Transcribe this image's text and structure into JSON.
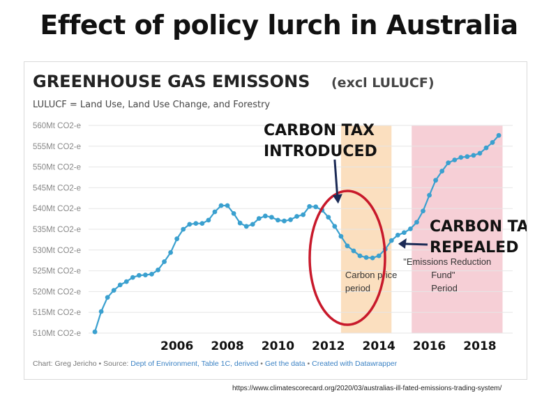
{
  "slide_title": "Effect of policy lurch in Australia",
  "source_url": "https://www.climatescorecard.org/2020/03/australias-ill-fated-emissions-trading-system/",
  "colors": {
    "line": "#3aa0cf",
    "carbon_price_shade": "#fbdfbf",
    "erf_shade": "#f6cfd6",
    "circle": "#c8192b",
    "annotation_arrow": "#1b2a55"
  },
  "chart_data": {
    "type": "line",
    "title": "GREENHOUSE GAS EMISSONS",
    "title_suffix": "(excl LULUCF)",
    "subtitle": "LULUCF = Land Use, Land Use Change, and Forestry",
    "xlabel": "",
    "ylabel": "",
    "ylim": [
      510,
      560
    ],
    "xlim": [
      2002.5,
      2019.3
    ],
    "grid": true,
    "y_tick_values": [
      510,
      515,
      520,
      525,
      530,
      535,
      540,
      545,
      550,
      555,
      560
    ],
    "y_tick_labels": [
      "510Mt CO2-e",
      "515Mt CO2-e",
      "520Mt CO2-e",
      "525Mt CO2-e",
      "530Mt CO2-e",
      "535Mt CO2-e",
      "540Mt CO2-e",
      "545Mt CO2-e",
      "550Mt CO2-e",
      "555Mt CO2-e",
      "560Mt CO2-e"
    ],
    "x_tick_values": [
      2006,
      2008,
      2010,
      2012,
      2014,
      2016,
      2018
    ],
    "x_tick_labels": [
      "2006",
      "2008",
      "2010",
      "2012",
      "2014",
      "2016",
      "2018"
    ],
    "series": [
      {
        "x": [
          2002.75,
          2003.0,
          2003.25,
          2003.5,
          2003.75,
          2004.0,
          2004.25,
          2004.5,
          2004.75,
          2005.0,
          2005.25,
          2005.5,
          2005.75,
          2006.0,
          2006.25,
          2006.5,
          2006.75,
          2007.0,
          2007.25,
          2007.5,
          2007.75,
          2008.0,
          2008.25,
          2008.5,
          2008.75,
          2009.0,
          2009.25,
          2009.5,
          2009.75,
          2010.0,
          2010.25,
          2010.5,
          2010.75,
          2011.0,
          2011.25,
          2011.5,
          2011.75,
          2012.0,
          2012.25,
          2012.5,
          2012.75,
          2013.0,
          2013.25,
          2013.5,
          2013.75,
          2014.0,
          2014.25,
          2014.5,
          2014.75,
          2015.0,
          2015.25,
          2015.5,
          2015.75,
          2016.0,
          2016.25,
          2016.5,
          2016.75,
          2017.0,
          2017.25,
          2017.5,
          2017.75,
          2018.0,
          2018.25,
          2018.5,
          2018.75
        ],
        "y": [
          510.3,
          515.2,
          518.6,
          520.3,
          521.6,
          522.4,
          523.4,
          523.9,
          524.0,
          524.2,
          525.2,
          527.2,
          529.4,
          532.7,
          535.0,
          536.2,
          536.4,
          536.4,
          537.2,
          539.2,
          540.7,
          540.7,
          538.8,
          536.5,
          535.7,
          536.2,
          537.6,
          538.2,
          537.9,
          537.2,
          537.0,
          537.3,
          538.1,
          538.5,
          540.5,
          540.4,
          539.6,
          537.9,
          535.7,
          533.3,
          531.0,
          529.8,
          528.6,
          528.2,
          528.1,
          528.6,
          530.2,
          532.3,
          533.6,
          534.2,
          535.1,
          536.7,
          539.4,
          543.2,
          546.8,
          549.0,
          551.0,
          551.7,
          552.3,
          552.5,
          552.8,
          553.3,
          554.6,
          555.9,
          557.6
        ]
      }
    ],
    "shaded_periods": [
      {
        "from": 2012.5,
        "to": 2014.5,
        "label": "Carbon price\nperiod"
      },
      {
        "from": 2015.3,
        "to": 2018.9,
        "label": "\"Emissions Reduction\nFund\"\nPeriod"
      }
    ],
    "annotations": [
      {
        "text": "CARBON TAX\nINTRODUCED",
        "x": 2012.25,
        "y": 540.5
      },
      {
        "text": "CARBON TAX\nREPEALED",
        "x": 2014.6,
        "y": 531.0
      }
    ],
    "footer": {
      "chart_credit": "Chart: Greg Jericho",
      "source_prefix": "Source:",
      "source_link": "Dept of Environment, Table 1C, derived",
      "get_data": "Get the data",
      "created_with": "Created with Datawrapper"
    }
  }
}
